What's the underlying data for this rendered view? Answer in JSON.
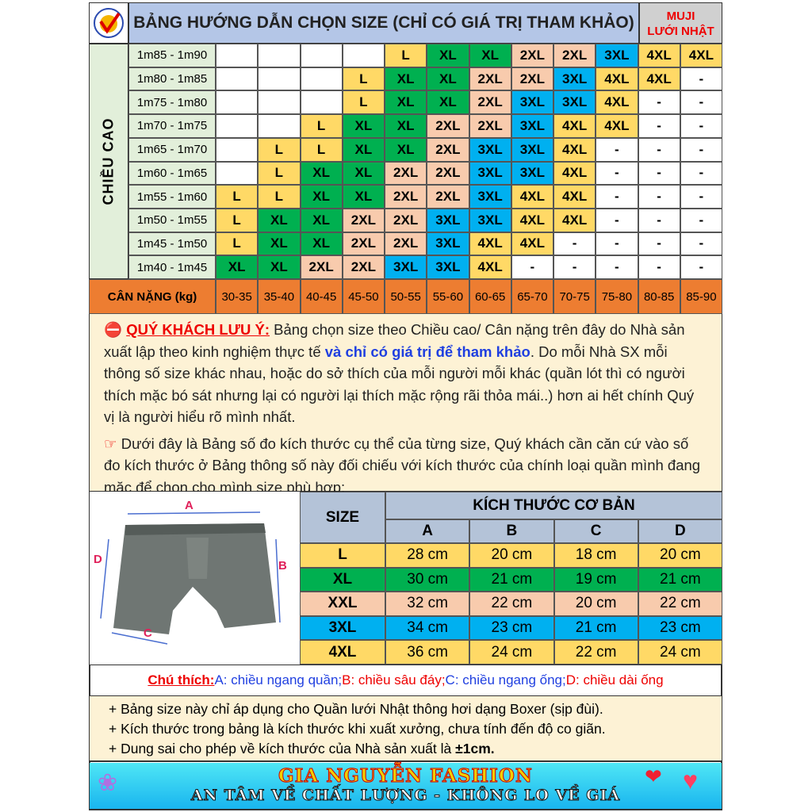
{
  "header": {
    "title": "BẢNG HƯỚNG DẪN CHỌN SIZE (CHỈ CÓ GIÁ TRỊ THAM KHẢO)",
    "brand_line1": "MUJI",
    "brand_line2": "LƯỚI NHẬT",
    "logo": "quality-check-logo"
  },
  "size_grid": {
    "height_label": "CHIỀU CAO",
    "weight_label": "CÂN NẶNG (kg)",
    "weights": [
      "30-35",
      "35-40",
      "40-45",
      "45-50",
      "50-55",
      "55-60",
      "60-65",
      "65-70",
      "70-75",
      "75-80",
      "80-85",
      "85-90"
    ],
    "rows": [
      {
        "height": "1m85 - 1m90",
        "sizes": [
          "",
          "",
          "",
          "",
          "L",
          "XL",
          "XL",
          "2XL",
          "2XL",
          "3XL",
          "4XL",
          "4XL"
        ]
      },
      {
        "height": "1m80 - 1m85",
        "sizes": [
          "",
          "",
          "",
          "L",
          "XL",
          "XL",
          "2XL",
          "2XL",
          "3XL",
          "4XL",
          "4XL",
          "-"
        ]
      },
      {
        "height": "1m75 - 1m80",
        "sizes": [
          "",
          "",
          "",
          "L",
          "XL",
          "XL",
          "2XL",
          "3XL",
          "3XL",
          "4XL",
          "-",
          "-"
        ]
      },
      {
        "height": "1m70 - 1m75",
        "sizes": [
          "",
          "",
          "L",
          "XL",
          "XL",
          "2XL",
          "2XL",
          "3XL",
          "4XL",
          "4XL",
          "-",
          "-"
        ]
      },
      {
        "height": "1m65 - 1m70",
        "sizes": [
          "",
          "L",
          "L",
          "XL",
          "XL",
          "2XL",
          "3XL",
          "3XL",
          "4XL",
          "-",
          "-",
          "-"
        ]
      },
      {
        "height": "1m60 - 1m65",
        "sizes": [
          "",
          "L",
          "XL",
          "XL",
          "2XL",
          "2XL",
          "3XL",
          "3XL",
          "4XL",
          "-",
          "-",
          "-"
        ]
      },
      {
        "height": "1m55 - 1m60",
        "sizes": [
          "L",
          "L",
          "XL",
          "XL",
          "2XL",
          "2XL",
          "3XL",
          "4XL",
          "4XL",
          "-",
          "-",
          "-"
        ]
      },
      {
        "height": "1m50 - 1m55",
        "sizes": [
          "L",
          "XL",
          "XL",
          "2XL",
          "2XL",
          "3XL",
          "3XL",
          "4XL",
          "4XL",
          "-",
          "-",
          "-"
        ]
      },
      {
        "height": "1m45 - 1m50",
        "sizes": [
          "L",
          "XL",
          "XL",
          "2XL",
          "2XL",
          "3XL",
          "4XL",
          "4XL",
          "-",
          "-",
          "-",
          "-"
        ]
      },
      {
        "height": "1m40 - 1m45",
        "sizes": [
          "XL",
          "XL",
          "2XL",
          "2XL",
          "3XL",
          "3XL",
          "4XL",
          "-",
          "-",
          "-",
          "-",
          "-"
        ]
      }
    ]
  },
  "colors": {
    "L": "#ffd966",
    "XL": "#00b050",
    "2XL": "#f8cbad",
    "3XL": "#00b0f0",
    "4XL": "#ffd966",
    "weight_row": "#ed7d31",
    "height_col": "#e2efda",
    "header": "#b4c6e7"
  },
  "notice": {
    "icon": "no-entry-icon",
    "title": "QUÝ KHÁCH LƯU Ý:",
    "text1": " Bảng chọn size theo Chiều cao/ Cân nặng trên đây do Nhà sản xuất lập theo kinh nghiệm thực tế ",
    "highlight": "và chỉ có giá trị để tham khảo",
    "text2": ". Do mỗi Nhà SX mỗi thông số size khác nhau, hoặc do sở thích của mỗi người mỗi khác (quần lót thì có người thích mặc bó sát nhưng lại có người lại thích mặc rộng rãi thỏa mái..) hơn ai hết chính Quý vị là người hiểu rõ mình nhất.",
    "pointer_icon": "pointing-hand-icon",
    "text3": " Dưới đây là Bảng số đo kích thước cụ thể của từng size, Quý khách cần căn cứ vào số đo kích thước ở Bảng thông số này đối chiếu với kích thước của chính loại quần mình đang mặc để chọn cho mình size phù hợp:"
  },
  "diagram": {
    "labels": [
      "A",
      "B",
      "C",
      "D"
    ]
  },
  "measure_table": {
    "size_header": "SIZE",
    "group_header": "KÍCH THƯỚC CƠ BẢN",
    "columns": [
      "A",
      "B",
      "C",
      "D"
    ],
    "rows": [
      {
        "size": "L",
        "values": [
          "28 cm",
          "20 cm",
          "18 cm",
          "20 cm"
        ]
      },
      {
        "size": "XL",
        "values": [
          "30 cm",
          "21 cm",
          "19 cm",
          "21 cm"
        ]
      },
      {
        "size": "XXL",
        "values": [
          "32 cm",
          "22 cm",
          "20 cm",
          "22 cm"
        ]
      },
      {
        "size": "3XL",
        "values": [
          "34 cm",
          "23 cm",
          "21 cm",
          "23 cm"
        ]
      },
      {
        "size": "4XL",
        "values": [
          "36 cm",
          "24 cm",
          "22 cm",
          "24 cm"
        ]
      }
    ]
  },
  "legend": {
    "title": "Chú thích:",
    "a": " A: chiều ngang quần;",
    "b": " B: chiều sâu đáy;",
    "c": " C: chiều ngang ống;",
    "d": " D: chiều dài ống"
  },
  "rules": {
    "r1": "+ Bảng size này chỉ áp dụng cho Quần lưới Nhật thông hơi dạng Boxer (sịp đùi).",
    "r2": "+ Kích thước trong bảng là kích thước khi xuất xưởng, chưa tính đến độ co giãn.",
    "r3a": "+ Dung sai cho phép về kích thước của Nhà sản xuất là ",
    "r3b": "±1cm."
  },
  "banner": {
    "line1": "GIA NGUYỄN FASHION",
    "line2": "AN TÂM VỀ CHẤT LƯỢNG - KHÔNG LO VỀ GIÁ"
  }
}
